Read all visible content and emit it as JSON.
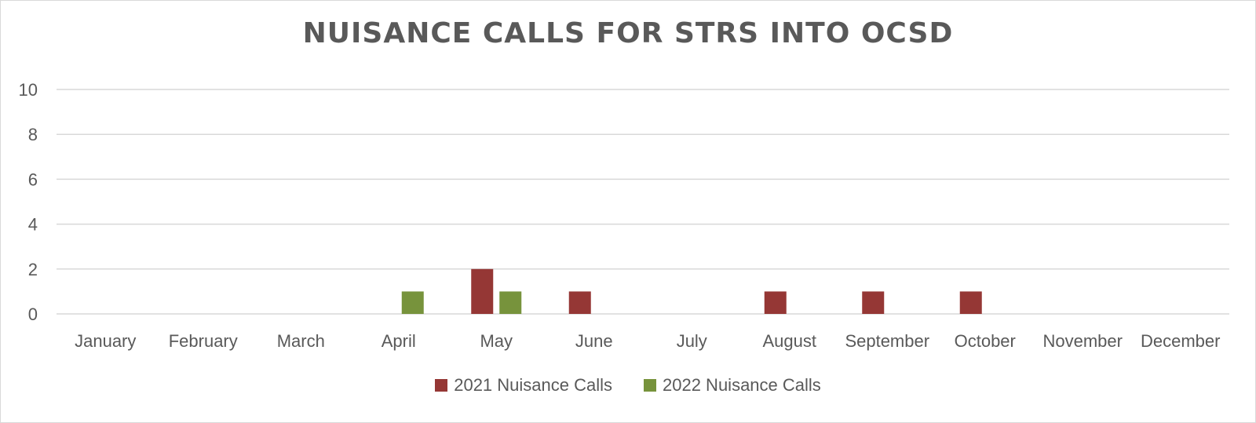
{
  "chart_data": {
    "type": "bar",
    "title": "Nuisance Calls for STRs into OCSD",
    "xlabel": "",
    "ylabel": "",
    "ylim": [
      0,
      10
    ],
    "yticks": [
      0,
      2,
      4,
      6,
      8,
      10
    ],
    "grid": true,
    "legend_position": "bottom",
    "categories": [
      "January",
      "February",
      "March",
      "April",
      "May",
      "June",
      "July",
      "August",
      "September",
      "October",
      "November",
      "December"
    ],
    "series": [
      {
        "name": "2021 Nuisance Calls",
        "color": "#953735",
        "values": [
          0,
          0,
          0,
          0,
          2,
          1,
          0,
          1,
          1,
          1,
          0,
          0
        ]
      },
      {
        "name": "2022 Nuisance Calls",
        "color": "#77933c",
        "values": [
          0,
          0,
          0,
          1,
          1,
          0,
          0,
          0,
          0,
          0,
          0,
          0
        ]
      }
    ]
  }
}
